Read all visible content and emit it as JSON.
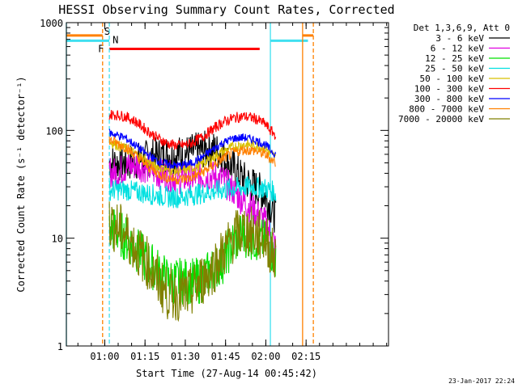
{
  "chart_data": {
    "type": "line",
    "title": "HESSI Observing Summary Count Rates, Corrected",
    "xlabel": "Start Time (27-Aug-14 00:45:42)",
    "ylabel": "Corrected Count Rate (s⁻¹ detector⁻¹)",
    "x_unit": "minutes after 00:45:42",
    "xlim": [
      0,
      120
    ],
    "ylim": [
      1,
      1000
    ],
    "yscale": "log",
    "x_ticks": [
      {
        "label": "01:00",
        "x": 14.3
      },
      {
        "label": "01:15",
        "x": 29.3
      },
      {
        "label": "01:30",
        "x": 44.3
      },
      {
        "label": "01:45",
        "x": 59.3
      },
      {
        "label": "02:00",
        "x": 74.3
      },
      {
        "label": "02:15",
        "x": 89.3
      }
    ],
    "y_ticks": [
      {
        "label": "1",
        "y": 1
      },
      {
        "label": "10",
        "y": 10
      },
      {
        "label": "100",
        "y": 100
      },
      {
        "label": "1000",
        "y": 1000
      }
    ],
    "legend_title": "Det 1,3,6,9, Att 0",
    "legend_position": "right",
    "series": [
      {
        "name": "3 - 6 keV",
        "color": "#000000",
        "noise": 0.18,
        "x": [
          16,
          18,
          22,
          26,
          30,
          34,
          38,
          42,
          46,
          50,
          54,
          58,
          62,
          66,
          70,
          74,
          76,
          78
        ],
        "y": [
          50,
          50,
          50,
          52,
          55,
          58,
          60,
          60,
          62,
          65,
          68,
          60,
          45,
          35,
          30,
          25,
          20,
          16
        ]
      },
      {
        "name": "6 - 12 keV",
        "color": "#e000e0",
        "noise": 0.15,
        "x": [
          16,
          18,
          22,
          26,
          30,
          34,
          38,
          42,
          46,
          50,
          54,
          58,
          62,
          66,
          70,
          74,
          76,
          78
        ],
        "y": [
          42,
          40,
          45,
          48,
          45,
          40,
          38,
          36,
          36,
          38,
          38,
          35,
          28,
          22,
          18,
          14,
          11,
          8
        ]
      },
      {
        "name": "12 - 25 keV",
        "color": "#00e000",
        "noise": 0.22,
        "x": [
          16,
          18,
          22,
          26,
          30,
          34,
          38,
          42,
          46,
          50,
          54,
          58,
          62,
          66,
          70,
          74,
          76,
          78
        ],
        "y": [
          12,
          12,
          10,
          8,
          6,
          5,
          4,
          4,
          4,
          4,
          5,
          6,
          9,
          11,
          10,
          9,
          8,
          6
        ]
      },
      {
        "name": "25 - 50 keV",
        "color": "#00e0e0",
        "noise": 0.1,
        "x": [
          16,
          18,
          22,
          26,
          30,
          34,
          38,
          42,
          46,
          50,
          54,
          58,
          62,
          66,
          70,
          74,
          76,
          78
        ],
        "y": [
          28,
          28,
          28,
          27,
          26,
          25,
          24,
          24,
          25,
          26,
          27,
          28,
          29,
          30,
          30,
          29,
          28,
          26
        ]
      },
      {
        "name": "50 - 100 keV",
        "color": "#d8c000",
        "noise": 0.05,
        "x": [
          16,
          18,
          22,
          26,
          30,
          34,
          38,
          42,
          46,
          50,
          54,
          58,
          62,
          66,
          70,
          74,
          76,
          78
        ],
        "y": [
          78,
          75,
          68,
          60,
          52,
          46,
          43,
          42,
          44,
          48,
          55,
          63,
          70,
          74,
          73,
          68,
          62,
          55
        ]
      },
      {
        "name": "100 - 300 keV",
        "color": "#ff0000",
        "noise": 0.05,
        "x": [
          16,
          18,
          22,
          26,
          30,
          34,
          38,
          42,
          46,
          50,
          54,
          58,
          62,
          66,
          70,
          74,
          76,
          78
        ],
        "y": [
          140,
          140,
          135,
          120,
          100,
          85,
          75,
          72,
          75,
          85,
          100,
          118,
          130,
          135,
          130,
          115,
          100,
          90
        ]
      },
      {
        "name": "300 - 800 keV",
        "color": "#0000ff",
        "noise": 0.04,
        "x": [
          16,
          18,
          22,
          26,
          30,
          34,
          38,
          42,
          46,
          50,
          54,
          58,
          62,
          66,
          70,
          74,
          76,
          78
        ],
        "y": [
          95,
          92,
          85,
          72,
          60,
          52,
          48,
          47,
          49,
          55,
          65,
          76,
          84,
          86,
          82,
          74,
          66,
          60
        ]
      },
      {
        "name": "800 - 7000 keV",
        "color": "#ff8000",
        "noise": 0.05,
        "x": [
          16,
          18,
          22,
          26,
          30,
          34,
          38,
          42,
          46,
          50,
          54,
          58,
          62,
          66,
          70,
          74,
          76,
          78
        ],
        "y": [
          82,
          78,
          70,
          58,
          47,
          40,
          36,
          35,
          36,
          40,
          46,
          54,
          62,
          66,
          65,
          60,
          55,
          50
        ]
      },
      {
        "name": "7000 - 20000 keV",
        "color": "#808000",
        "noise": 0.25,
        "x": [
          16,
          18,
          22,
          26,
          30,
          34,
          38,
          42,
          46,
          50,
          54,
          58,
          62,
          66,
          70,
          74,
          76,
          78
        ],
        "y": [
          14,
          13,
          11,
          8,
          6,
          4,
          3,
          3,
          3,
          4,
          5,
          7,
          10,
          12,
          11,
          10,
          8,
          6
        ]
      }
    ],
    "flags": [
      {
        "label": "S",
        "color": "#ff8000",
        "x1": 0,
        "x2": 13.5,
        "y": 760,
        "side": "left"
      },
      {
        "label": "N",
        "color": "#40e0f0",
        "x1": 0,
        "x2": 16,
        "y": 680,
        "side": "left"
      },
      {
        "label": "F",
        "color": "#ff0000",
        "x1": 16,
        "x2": 72,
        "y": 570,
        "side": "left"
      },
      {
        "label": "",
        "color": "#40e0f0",
        "x1": 76,
        "x2": 90,
        "y": 680,
        "side": "right"
      },
      {
        "label": "",
        "color": "#ff8000",
        "x1": 88,
        "x2": 92,
        "y": 760,
        "side": "right"
      }
    ],
    "vlines": [
      {
        "x": 13.5,
        "color": "#ff8000",
        "dashed": true
      },
      {
        "x": 16,
        "color": "#40e0f0",
        "dashed": true
      },
      {
        "x": 76,
        "color": "#40e0f0",
        "dashed": false
      },
      {
        "x": 88,
        "color": "#ff8000",
        "dashed": false
      },
      {
        "x": 92,
        "color": "#ff8000",
        "dashed": true
      },
      {
        "x": 0,
        "color": "#40e0f0",
        "dashed": false
      }
    ],
    "timestamp": "23-Jan-2017 22:24"
  }
}
